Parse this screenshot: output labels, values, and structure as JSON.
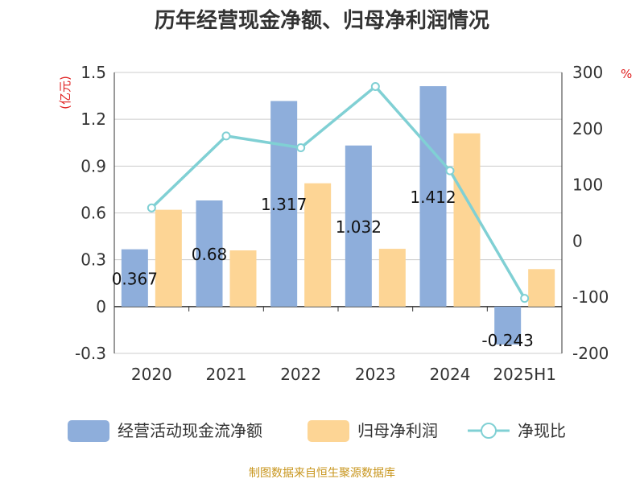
{
  "chart_data": {
    "type": "bar",
    "title": "历年经营现金净额、归母净利润情况",
    "categories": [
      "2020",
      "2021",
      "2022",
      "2023",
      "2024",
      "2025H1"
    ],
    "left_axis": {
      "unit": "(亿元)",
      "min": -0.3,
      "max": 1.5,
      "ticks": [
        "1.5",
        "1.2",
        "0.9",
        "0.6",
        "0.3",
        "0",
        "-0.3"
      ],
      "tick_values": [
        1.5,
        1.2,
        0.9,
        0.6,
        0.3,
        0,
        -0.3
      ]
    },
    "right_axis": {
      "unit": "%",
      "min": -200,
      "max": 300,
      "ticks": [
        "300",
        "200",
        "100",
        "0",
        "-100",
        "-200"
      ],
      "tick_values": [
        300,
        200,
        100,
        0,
        -100,
        -200
      ]
    },
    "series": [
      {
        "name": "经营活动现金流净额",
        "kind": "bar",
        "axis": "left",
        "color": "#8eaedb",
        "values": [
          0.367,
          0.68,
          1.317,
          1.032,
          1.412,
          -0.243
        ],
        "labels": [
          "0.367",
          "0.68",
          "1.317",
          "1.032",
          "1.412",
          "-0.243"
        ]
      },
      {
        "name": "归母净利润",
        "kind": "bar",
        "axis": "left",
        "color": "#fdd595",
        "values": [
          0.62,
          0.36,
          0.79,
          0.37,
          1.11,
          0.24
        ]
      },
      {
        "name": "净现比",
        "kind": "line",
        "axis": "right",
        "color": "#80d0d4",
        "values": [
          59,
          187,
          166,
          275,
          125,
          -102
        ]
      }
    ],
    "legend_position": "bottom",
    "grid": true
  },
  "source_note": "制图数据来自恒生聚源数据库"
}
